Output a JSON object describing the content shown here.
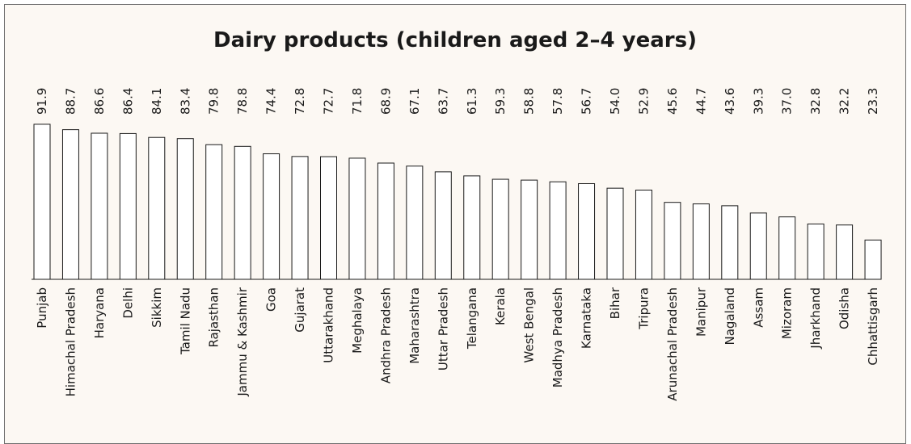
{
  "chart_data": {
    "type": "bar",
    "title": "Dairy products (children aged 2–4 years)",
    "xlabel": "",
    "ylabel": "",
    "ylim": [
      0,
      100
    ],
    "grid": false,
    "categories": [
      "Punjab",
      "Himachal Pradesh",
      "Haryana",
      "Delhi",
      "Sikkim",
      "Tamil Nadu",
      "Rajasthan",
      "Jammu & Kashmir",
      "Goa",
      "Gujarat",
      "Uttarakhand",
      "Meghalaya",
      "Andhra Pradesh",
      "Maharashtra",
      "Uttar Pradesh",
      "Telangana",
      "Kerala",
      "West Bengal",
      "Madhya Pradesh",
      "Karnataka",
      "Bihar",
      "Tripura",
      "Arunachal Pradesh",
      "Manipur",
      "Nagaland",
      "Assam",
      "Mizoram",
      "Jharkhand",
      "Odisha",
      "Chhattisgarh"
    ],
    "values": [
      91.9,
      88.7,
      86.6,
      86.4,
      84.1,
      83.4,
      79.8,
      78.8,
      74.4,
      72.8,
      72.7,
      71.8,
      68.9,
      67.1,
      63.7,
      61.3,
      59.3,
      58.8,
      57.8,
      56.7,
      54.0,
      52.9,
      45.6,
      44.7,
      43.6,
      39.3,
      37.0,
      32.8,
      32.2,
      23.3
    ],
    "value_labels": [
      "91.9",
      "88.7",
      "86.6",
      "86.4",
      "84.1",
      "83.4",
      "79.8",
      "78.8",
      "74.4",
      "72.8",
      "72.7",
      "71.8",
      "68.9",
      "67.1",
      "63.7",
      "61.3",
      "59.3",
      "58.8",
      "57.8",
      "56.7",
      "54.0",
      "52.9",
      "45.6",
      "44.7",
      "43.6",
      "39.3",
      "37.0",
      "32.8",
      "32.2",
      "23.3"
    ],
    "bar_fill": "#ffffff",
    "bar_stroke": "#1a1a1a",
    "background": "#fcf8f3"
  }
}
